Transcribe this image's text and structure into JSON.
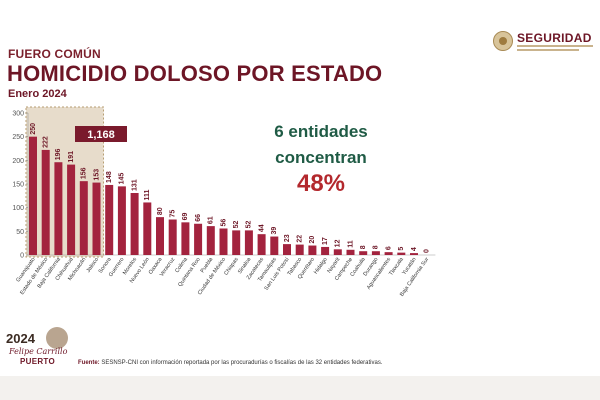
{
  "header": {
    "kicker": "FUERO COMÚN",
    "title": "HOMICIDIO DOLOSO POR ESTADO",
    "period": "Enero 2024"
  },
  "logo": {
    "brand": "SEGURIDAD"
  },
  "callout": {
    "line1": "6 entidades",
    "line2": "concentran",
    "percent": "48%"
  },
  "chart_data": {
    "type": "bar",
    "title": "HOMICIDIO DOLOSO POR ESTADO",
    "ylim": [
      0,
      300
    ],
    "yticks": [
      0,
      50,
      100,
      150,
      200,
      250,
      300
    ],
    "categories": [
      "Guanajuato",
      "Estado de México",
      "Baja California",
      "Chihuahua",
      "Michoacán",
      "Jalisco",
      "Sonora",
      "Guerrero",
      "Morelos",
      "Nuevo León",
      "Oaxaca",
      "Veracruz",
      "Colima",
      "Quintana Roo",
      "Puebla",
      "Ciudad de México",
      "Chiapas",
      "Sinaloa",
      "Zacatecas",
      "Tamaulipas",
      "San Luis Potosí",
      "Tabasco",
      "Querétaro",
      "Hidalgo",
      "Nayarit",
      "Campeche",
      "Coahuila",
      "Durango",
      "Aguascalientes",
      "Tlaxcala",
      "Yucatán",
      "Baja California Sur"
    ],
    "values": [
      250,
      222,
      196,
      191,
      156,
      153,
      148,
      145,
      131,
      111,
      80,
      75,
      69,
      66,
      61,
      56,
      52,
      52,
      44,
      39,
      23,
      22,
      20,
      17,
      12,
      11,
      8,
      8,
      6,
      5,
      4,
      0
    ],
    "highlight_count": 6,
    "highlight_total": "1,168",
    "bar_color": "#a3233e",
    "highlight_bg": "#e7dccb",
    "highlight_border": "#b79e73"
  },
  "footer": {
    "source_label": "Fuente:",
    "source_text": "SESNSP-CNI con información reportada por las procuradurías o fiscalías de las 32 entidades federativas.",
    "badge_year": "2024",
    "badge_name1": "Felipe Carrillo",
    "badge_name2": "PUERTO"
  }
}
